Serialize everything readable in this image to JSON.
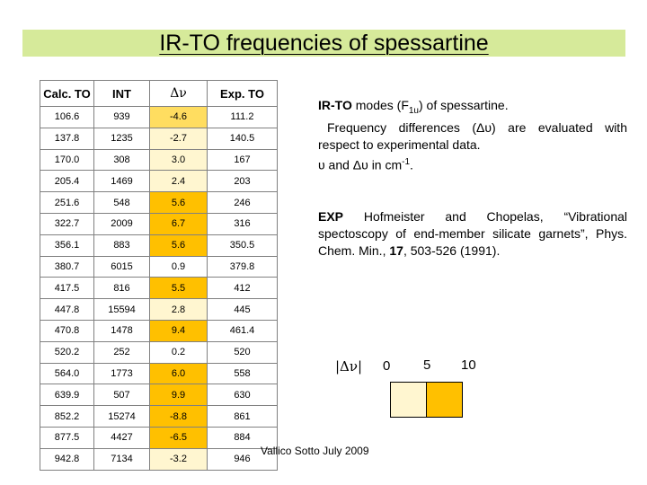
{
  "title": "IR-TO frequencies of spessartine",
  "table": {
    "headers": [
      "Calc. TO",
      "INT",
      "Δν",
      "Exp. TO"
    ],
    "rows": [
      [
        "106.6",
        "939",
        "-4.6",
        "111.2"
      ],
      [
        "137.8",
        "1235",
        "-2.7",
        "140.5"
      ],
      [
        "170.0",
        "308",
        "3.0",
        "167"
      ],
      [
        "205.4",
        "1469",
        "2.4",
        "203"
      ],
      [
        "251.6",
        "548",
        "5.6",
        "246"
      ],
      [
        "322.7",
        "2009",
        "6.7",
        "316"
      ],
      [
        "356.1",
        "883",
        "5.6",
        "350.5"
      ],
      [
        "380.7",
        "6015",
        "0.9",
        "379.8"
      ],
      [
        "417.5",
        "816",
        "5.5",
        "412"
      ],
      [
        "447.8",
        "15594",
        "2.8",
        "445"
      ],
      [
        "470.8",
        "1478",
        "9.4",
        "461.4"
      ],
      [
        "520.2",
        "252",
        "0.2",
        "520"
      ],
      [
        "564.0",
        "1773",
        "6.0",
        "558"
      ],
      [
        "639.9",
        "507",
        "9.9",
        "630"
      ],
      [
        "852.2",
        "15274",
        "-8.8",
        "861"
      ],
      [
        "877.5",
        "4427",
        "-6.5",
        "884"
      ],
      [
        "942.8",
        "7134",
        "-3.2",
        "946"
      ]
    ]
  },
  "notes": {
    "modes_bold": "IR-TO",
    "modes_prefix": " modes (F",
    "modes_sub": "1u",
    "modes_suffix": ") of spessartine.",
    "freq_diff": "Frequency differences (Δυ) are evaluated with respect to experimental data.",
    "units_prefix": "υ and Δυ in cm",
    "units_sup": "-1",
    "units_suffix": "."
  },
  "reference": {
    "label": "EXP",
    "text_before": " Hofmeister and Chopelas, “Vibrational spectoscopy of end-member silicate garnets”, Phys. Chem. Min., ",
    "volume": "17",
    "text_after": ", 503-526 (1991)."
  },
  "legend": {
    "label": "|Δν|",
    "ticks": [
      "0",
      "5",
      "10"
    ],
    "colors": {
      "low": "#fff6d0",
      "high": "#ffc000"
    }
  },
  "footer": "Vallico Sotto  July 2009",
  "colors": {
    "title_bg": "#d6ea9a",
    "table_border": "#808080"
  }
}
